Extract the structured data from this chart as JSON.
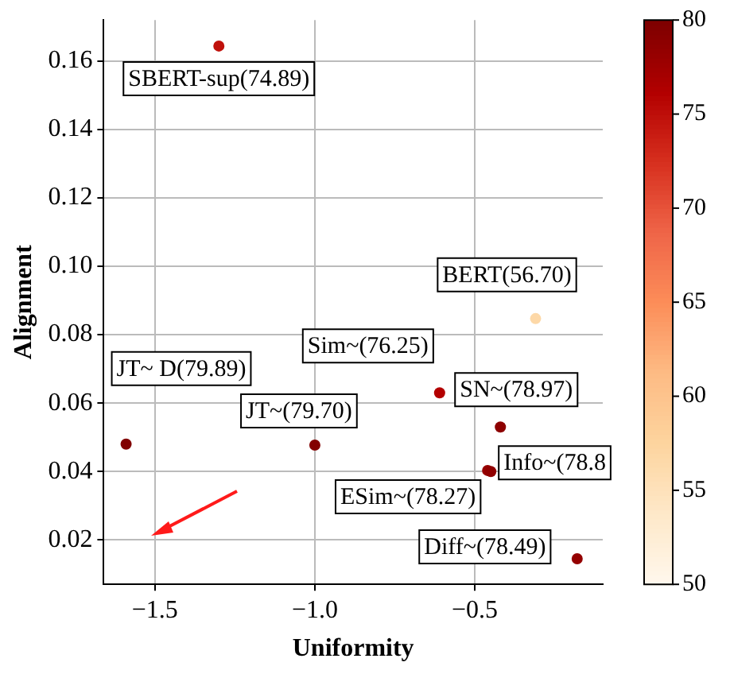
{
  "chart_data": {
    "type": "scatter",
    "xlabel": "Uniformity",
    "ylabel": "Alignment",
    "series": [
      {
        "x": [
          -1.3,
          -0.31,
          -0.61,
          -0.42,
          -1.59,
          -1.0,
          -0.46,
          -0.45,
          -0.18
        ],
        "values": [
          0.1644,
          0.0847,
          0.063,
          0.053,
          0.048,
          0.0477,
          0.0403,
          0.04,
          0.0145
        ],
        "cvalues": [
          74.89,
          56.7,
          76.25,
          78.97,
          79.89,
          79.7,
          78.27,
          78.8,
          78.49
        ]
      }
    ],
    "xlim": [
      -1.66,
      -0.1
    ],
    "ylim": [
      0.007,
      0.172
    ],
    "xticks": [
      {
        "value": -1.5,
        "label": "−1.5"
      },
      {
        "value": -1.0,
        "label": "−1.0"
      },
      {
        "value": -0.5,
        "label": "−0.5"
      }
    ],
    "yticks": [
      0.02,
      0.04,
      0.06,
      0.08,
      {
        "value": 0.1,
        "label": "0.10"
      },
      0.12,
      0.14,
      0.16
    ],
    "clim": [
      50,
      80
    ],
    "cticks": [
      50,
      55,
      60,
      65,
      70,
      75,
      80
    ],
    "annotations": [
      {
        "text": "SBERT-sup(74.89)",
        "x": -1.3,
        "y": 0.1644
      },
      {
        "text": "BERT(56.70)",
        "x": -0.31,
        "y": 0.0847
      },
      {
        "text": "Sim~(76.25)",
        "x": -0.61,
        "y": 0.063
      },
      {
        "text": "SN~(78.97)",
        "x": -0.42,
        "y": 0.053
      },
      {
        "text": "JT~ D(79.89)",
        "x": -1.59,
        "y": 0.048
      },
      {
        "text": "JT~(79.70)",
        "x": -1.0,
        "y": 0.0477
      },
      {
        "text": "ESim~(78.27)",
        "x": -0.46,
        "y": 0.0403
      },
      {
        "text": "Info~(78.8",
        "x": -0.45,
        "y": 0.04
      },
      {
        "text": "Diff~(78.49)",
        "x": -0.18,
        "y": 0.0145
      }
    ],
    "grid": true,
    "marker": "circle",
    "legend": false
  }
}
